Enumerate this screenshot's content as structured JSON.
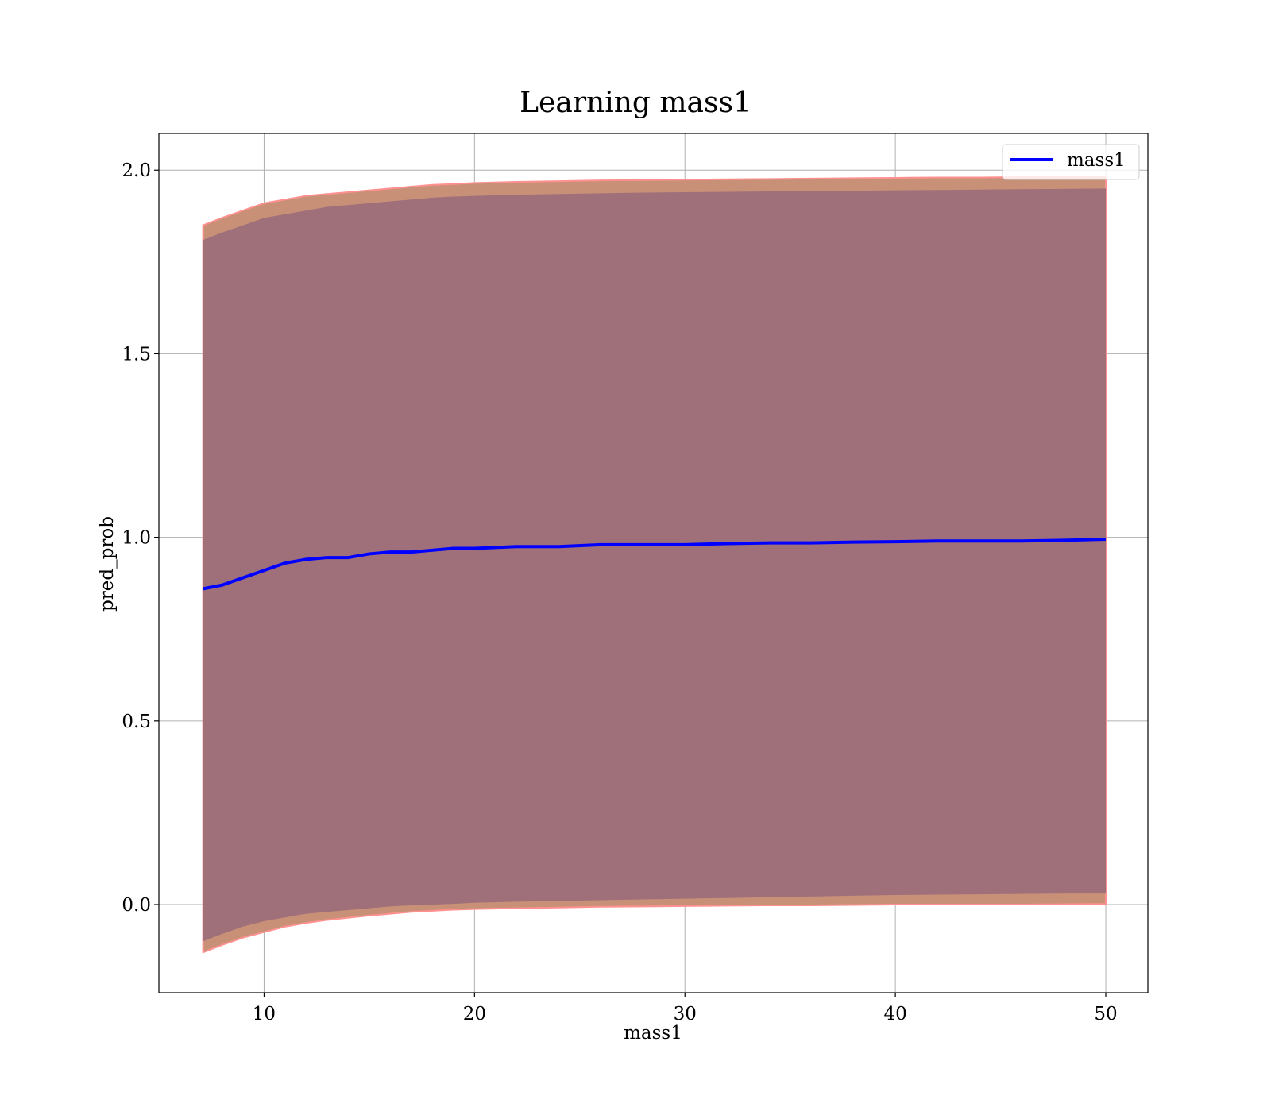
{
  "chart_data": {
    "type": "line",
    "title": "Learning mass1",
    "xlabel": "mass1",
    "ylabel": "pred_prob",
    "xlim": [
      5,
      52
    ],
    "ylim": [
      -0.24,
      2.1
    ],
    "xticks": [
      10,
      20,
      30,
      40,
      50
    ],
    "xtick_labels": [
      "10",
      "20",
      "30",
      "40",
      "50"
    ],
    "yticks": [
      0.0,
      0.5,
      1.0,
      1.5,
      2.0
    ],
    "ytick_labels": [
      "0.0",
      "0.5",
      "1.0",
      "1.5",
      "2.0"
    ],
    "grid": true,
    "legend_position": "top-right",
    "series": [
      {
        "name": "mass1",
        "color": "#0000ff",
        "x": [
          7.1,
          8,
          9,
          10,
          11,
          12,
          13,
          14,
          15,
          16,
          17,
          18,
          19,
          20,
          22,
          24,
          26,
          28,
          30,
          32,
          34,
          36,
          38,
          40,
          42,
          44,
          46,
          48,
          50
        ],
        "y": [
          0.86,
          0.87,
          0.89,
          0.91,
          0.93,
          0.94,
          0.945,
          0.945,
          0.955,
          0.96,
          0.96,
          0.965,
          0.97,
          0.97,
          0.975,
          0.975,
          0.98,
          0.98,
          0.98,
          0.983,
          0.985,
          0.985,
          0.987,
          0.988,
          0.99,
          0.99,
          0.99,
          0.992,
          0.995
        ]
      }
    ],
    "bands": [
      {
        "color": "#ff9090",
        "outer_fill": "#c99078",
        "inner_fill": "#a0707a",
        "x": [
          7.1,
          8,
          9,
          10,
          11,
          12,
          13,
          14,
          15,
          16,
          17,
          18,
          19,
          20,
          22,
          24,
          26,
          28,
          30,
          32,
          34,
          36,
          38,
          40,
          42,
          44,
          46,
          48,
          50
        ],
        "upper": [
          1.85,
          1.87,
          1.89,
          1.91,
          1.92,
          1.93,
          1.935,
          1.94,
          1.945,
          1.95,
          1.955,
          1.96,
          1.962,
          1.965,
          1.968,
          1.97,
          1.972,
          1.973,
          1.974,
          1.975,
          1.976,
          1.977,
          1.978,
          1.979,
          1.98,
          1.98,
          1.981,
          1.982,
          1.983
        ],
        "upper_inner": [
          1.81,
          1.83,
          1.85,
          1.87,
          1.88,
          1.89,
          1.9,
          1.905,
          1.91,
          1.915,
          1.92,
          1.925,
          1.928,
          1.93,
          1.933,
          1.935,
          1.937,
          1.939,
          1.94,
          1.941,
          1.942,
          1.943,
          1.944,
          1.945,
          1.946,
          1.947,
          1.948,
          1.949,
          1.95
        ],
        "lower_inner": [
          -0.1,
          -0.08,
          -0.06,
          -0.045,
          -0.035,
          -0.025,
          -0.02,
          -0.015,
          -0.01,
          -0.005,
          -0.002,
          0.0,
          0.002,
          0.005,
          0.008,
          0.01,
          0.012,
          0.014,
          0.016,
          0.018,
          0.02,
          0.022,
          0.024,
          0.026,
          0.027,
          0.028,
          0.029,
          0.03,
          0.03
        ],
        "lower": [
          -0.13,
          -0.11,
          -0.09,
          -0.075,
          -0.06,
          -0.05,
          -0.042,
          -0.036,
          -0.03,
          -0.025,
          -0.02,
          -0.017,
          -0.014,
          -0.012,
          -0.01,
          -0.008,
          -0.006,
          -0.005,
          -0.004,
          -0.003,
          -0.002,
          -0.002,
          -0.001,
          0.0,
          0.0,
          0.0,
          0.0,
          0.001,
          0.002
        ]
      }
    ]
  }
}
